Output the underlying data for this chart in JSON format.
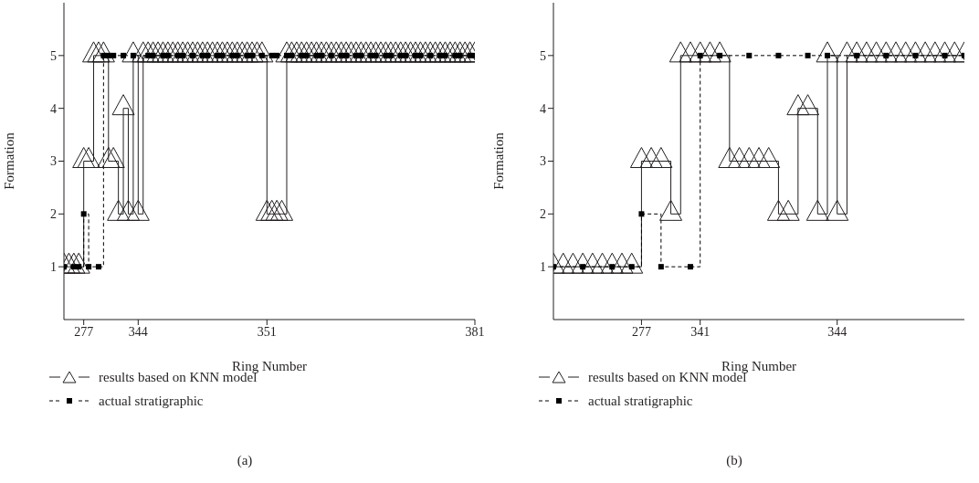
{
  "chart_data": [
    {
      "type": "step",
      "xlabel": "Ring Number",
      "ylabel": "Formation",
      "ylim": [
        0,
        6
      ],
      "yticks": [
        1,
        2,
        3,
        4,
        5
      ],
      "legend": "bottom",
      "annotations": [
        "(a)"
      ],
      "categories": [
        null,
        null,
        null,
        null,
        "277",
        null,
        null,
        null,
        null,
        null,
        null,
        null,
        null,
        null,
        null,
        "344",
        null,
        null,
        null,
        null,
        null,
        null,
        null,
        null,
        null,
        null,
        null,
        null,
        null,
        null,
        null,
        null,
        null,
        null,
        null,
        null,
        null,
        null,
        null,
        null,
        null,
        "351",
        null,
        null,
        null,
        null,
        null,
        null,
        null,
        null,
        null,
        null,
        null,
        null,
        null,
        null,
        null,
        null,
        null,
        null,
        null,
        null,
        null,
        null,
        null,
        null,
        null,
        null,
        null,
        null,
        null,
        null,
        null,
        null,
        null,
        null,
        null,
        null,
        null,
        null,
        null,
        null,
        null,
        "381"
      ],
      "series": [
        {
          "name": "results based on KNN model",
          "color": "#231f20",
          "marker": "triangle",
          "line_style": "solid",
          "values": [
            1,
            1,
            1,
            1,
            3,
            3,
            5,
            5,
            5,
            3,
            3,
            2,
            4,
            2,
            5,
            2,
            5,
            5,
            5,
            5,
            5,
            5,
            5,
            5,
            5,
            5,
            5,
            5,
            5,
            5,
            5,
            5,
            5,
            5,
            5,
            5,
            5,
            5,
            5,
            5,
            5,
            2,
            2,
            2,
            2,
            5,
            5,
            5,
            5,
            5,
            5,
            5,
            5,
            5,
            5,
            5,
            5,
            5,
            5,
            5,
            5,
            5,
            5,
            5,
            5,
            5,
            5,
            5,
            5,
            5,
            5,
            5,
            5,
            5,
            5,
            5,
            5,
            5,
            5,
            5,
            5,
            5,
            5,
            5
          ]
        },
        {
          "name": "actual stratigraphic",
          "color": "#000000",
          "marker": "square",
          "line_style": "dashed",
          "values": [
            1,
            null,
            1,
            1,
            2,
            1,
            null,
            1,
            5,
            5,
            5,
            null,
            5,
            null,
            5,
            null,
            null,
            5,
            5,
            null,
            5,
            5,
            null,
            5,
            5,
            null,
            5,
            null,
            5,
            5,
            null,
            5,
            5,
            null,
            5,
            5,
            null,
            5,
            5,
            null,
            5,
            null,
            5,
            5,
            null,
            5,
            5,
            null,
            5,
            5,
            null,
            5,
            5,
            null,
            5,
            null,
            5,
            5,
            null,
            5,
            5,
            null,
            5,
            5,
            null,
            5,
            5,
            null,
            5,
            5,
            null,
            5,
            5,
            null,
            5,
            null,
            5,
            5,
            null,
            5,
            5,
            null,
            5,
            5
          ]
        }
      ]
    },
    {
      "type": "step",
      "xlabel": "Ring Number",
      "ylabel": "Formation",
      "ylim": [
        0,
        6
      ],
      "yticks": [
        1,
        2,
        3,
        4,
        5
      ],
      "legend": "bottom",
      "annotations": [
        "(b)"
      ],
      "categories": [
        null,
        null,
        null,
        null,
        null,
        null,
        null,
        null,
        null,
        "277",
        null,
        null,
        null,
        null,
        null,
        "341",
        null,
        null,
        null,
        null,
        null,
        null,
        null,
        null,
        null,
        null,
        null,
        null,
        null,
        "344",
        null,
        null,
        null,
        null,
        null,
        null,
        null,
        null,
        null,
        null,
        null,
        null,
        null
      ],
      "series": [
        {
          "name": "results based on KNN model",
          "color": "#231f20",
          "marker": "triangle",
          "line_style": "solid",
          "values": [
            1,
            1,
            1,
            1,
            1,
            1,
            1,
            1,
            1,
            3,
            3,
            3,
            2,
            5,
            5,
            5,
            5,
            5,
            3,
            3,
            3,
            3,
            3,
            2,
            2,
            4,
            4,
            2,
            5,
            2,
            5,
            5,
            5,
            5,
            5,
            5,
            5,
            5,
            5,
            5,
            5,
            5,
            5
          ]
        },
        {
          "name": "actual stratigraphic",
          "color": "#000000",
          "marker": "square",
          "line_style": "dashed",
          "values": [
            1,
            null,
            null,
            1,
            null,
            null,
            1,
            null,
            1,
            2,
            null,
            1,
            null,
            null,
            1,
            5,
            null,
            5,
            null,
            null,
            5,
            null,
            null,
            5,
            null,
            null,
            5,
            null,
            5,
            null,
            null,
            5,
            null,
            null,
            5,
            null,
            null,
            5,
            null,
            null,
            5,
            null,
            5
          ]
        }
      ]
    }
  ]
}
